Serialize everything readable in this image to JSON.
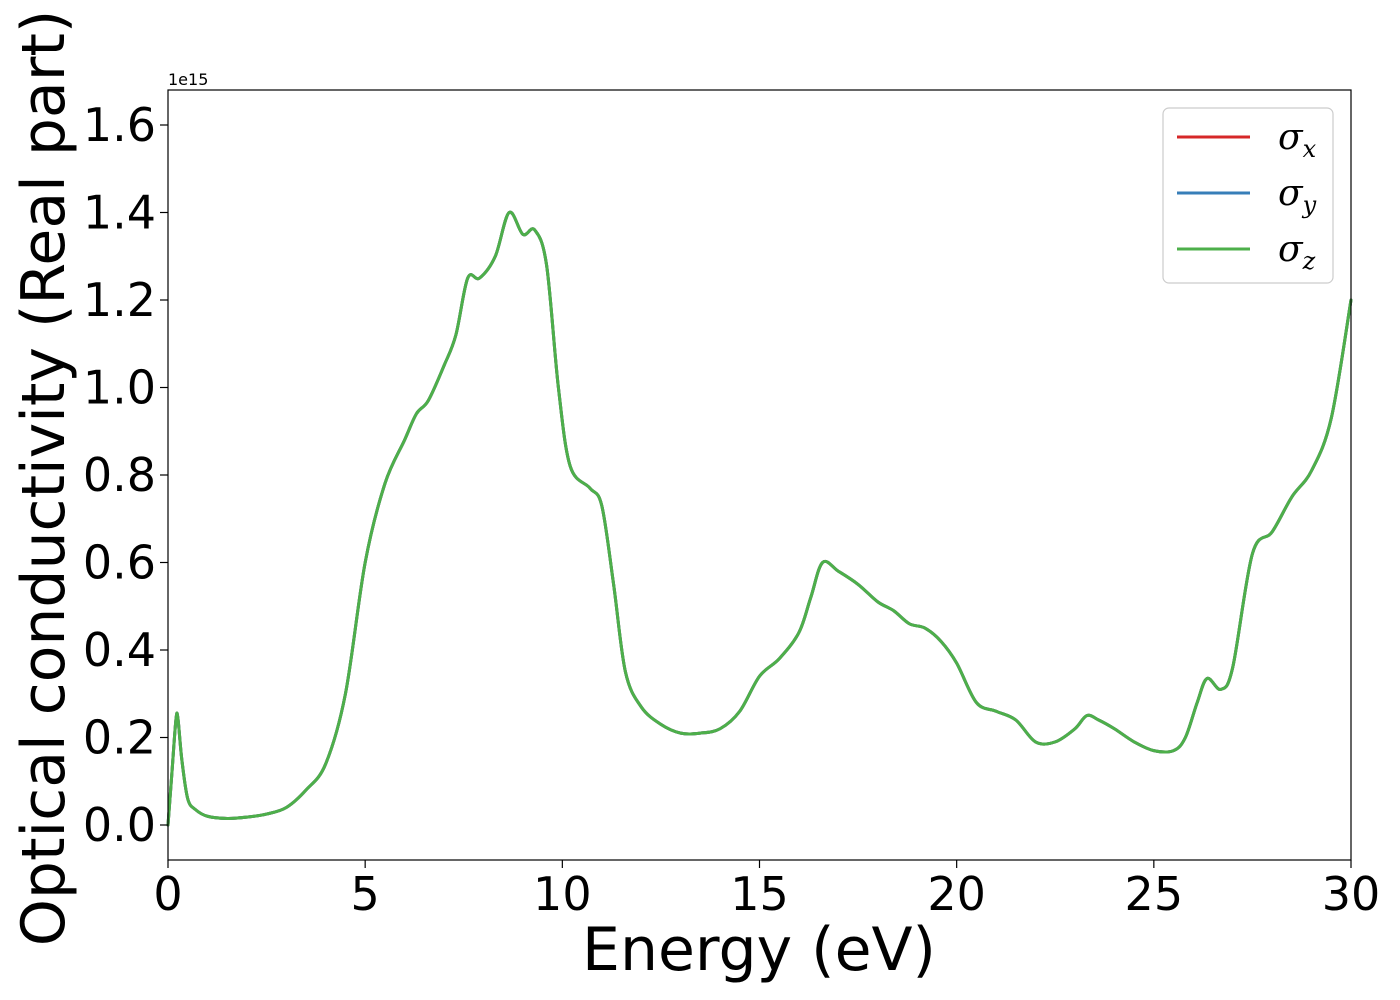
{
  "chart_data": {
    "type": "line",
    "xlabel": "Energy (eV)",
    "ylabel": "Optical conductivity (Real part)",
    "y_offset_label": "1e15",
    "y_scale_factor": 1000000000000000.0,
    "xlim": [
      0,
      30
    ],
    "ylim": [
      -0.08,
      1.68
    ],
    "x_ticks": [
      0,
      5,
      10,
      15,
      20,
      25,
      30
    ],
    "y_ticks": [
      0.0,
      0.2,
      0.4,
      0.6,
      0.8,
      1.0,
      1.2,
      1.4,
      1.6
    ],
    "x_tick_labels": [
      "0",
      "5",
      "10",
      "15",
      "20",
      "25",
      "30"
    ],
    "y_tick_labels": [
      "0.0",
      "0.2",
      "0.4",
      "0.6",
      "0.8",
      "1.0",
      "1.2",
      "1.4",
      "1.6"
    ],
    "grid": false,
    "legend_position": "top-right",
    "series": [
      {
        "name": "σx",
        "symbol": "σ",
        "subscript": "x",
        "color": "#d62728",
        "x": [
          0,
          0.1,
          0.2,
          0.25,
          0.35,
          0.5,
          0.7,
          1.0,
          1.5,
          2.0,
          2.5,
          3.0,
          3.5,
          4.0,
          4.5,
          5.0,
          5.5,
          6.0,
          6.3,
          6.6,
          7.0,
          7.3,
          7.6,
          7.9,
          8.3,
          8.65,
          9.0,
          9.3,
          9.6,
          9.9,
          10.2,
          10.7,
          11.0,
          11.3,
          11.6,
          12.0,
          12.5,
          13.0,
          13.5,
          14.0,
          14.5,
          15.0,
          15.5,
          16.0,
          16.3,
          16.6,
          17.0,
          17.5,
          18.0,
          18.4,
          18.8,
          19.2,
          19.6,
          20.0,
          20.5,
          21.0,
          21.5,
          22.0,
          22.5,
          23.0,
          23.3,
          23.6,
          24.0,
          24.5,
          25.0,
          25.5,
          25.8,
          26.1,
          26.35,
          26.7,
          27.0,
          27.5,
          28.0,
          28.5,
          29.0,
          29.5,
          30.0
        ],
        "y": [
          0.0,
          0.12,
          0.24,
          0.245,
          0.15,
          0.06,
          0.035,
          0.02,
          0.015,
          0.018,
          0.025,
          0.04,
          0.08,
          0.14,
          0.3,
          0.6,
          0.78,
          0.88,
          0.94,
          0.97,
          1.05,
          1.12,
          1.25,
          1.25,
          1.3,
          1.4,
          1.35,
          1.36,
          1.28,
          1.0,
          0.82,
          0.77,
          0.73,
          0.55,
          0.35,
          0.27,
          0.23,
          0.21,
          0.21,
          0.22,
          0.26,
          0.34,
          0.38,
          0.44,
          0.52,
          0.6,
          0.58,
          0.55,
          0.51,
          0.49,
          0.46,
          0.45,
          0.42,
          0.37,
          0.28,
          0.26,
          0.24,
          0.19,
          0.19,
          0.22,
          0.25,
          0.24,
          0.22,
          0.19,
          0.17,
          0.17,
          0.2,
          0.28,
          0.335,
          0.31,
          0.36,
          0.62,
          0.67,
          0.75,
          0.81,
          0.93,
          1.2
        ]
      },
      {
        "name": "σy",
        "symbol": "σ",
        "subscript": "y",
        "color": "#377eb8",
        "x": [
          0,
          0.1,
          0.2,
          0.25,
          0.35,
          0.5,
          0.7,
          1.0,
          1.5,
          2.0,
          2.5,
          3.0,
          3.5,
          4.0,
          4.5,
          5.0,
          5.5,
          6.0,
          6.3,
          6.6,
          7.0,
          7.3,
          7.6,
          7.9,
          8.3,
          8.65,
          9.0,
          9.3,
          9.6,
          9.9,
          10.2,
          10.7,
          11.0,
          11.3,
          11.6,
          12.0,
          12.5,
          13.0,
          13.5,
          14.0,
          14.5,
          15.0,
          15.5,
          16.0,
          16.3,
          16.6,
          17.0,
          17.5,
          18.0,
          18.4,
          18.8,
          19.2,
          19.6,
          20.0,
          20.5,
          21.0,
          21.5,
          22.0,
          22.5,
          23.0,
          23.3,
          23.6,
          24.0,
          24.5,
          25.0,
          25.5,
          25.8,
          26.1,
          26.35,
          26.7,
          27.0,
          27.5,
          28.0,
          28.5,
          29.0,
          29.5,
          30.0
        ],
        "y": [
          0.0,
          0.12,
          0.24,
          0.245,
          0.15,
          0.06,
          0.035,
          0.02,
          0.015,
          0.018,
          0.025,
          0.04,
          0.08,
          0.14,
          0.3,
          0.6,
          0.78,
          0.88,
          0.94,
          0.97,
          1.05,
          1.12,
          1.25,
          1.25,
          1.3,
          1.4,
          1.35,
          1.36,
          1.28,
          1.0,
          0.82,
          0.77,
          0.73,
          0.55,
          0.35,
          0.27,
          0.23,
          0.21,
          0.21,
          0.22,
          0.26,
          0.34,
          0.38,
          0.44,
          0.52,
          0.6,
          0.58,
          0.55,
          0.51,
          0.49,
          0.46,
          0.45,
          0.42,
          0.37,
          0.28,
          0.26,
          0.24,
          0.19,
          0.19,
          0.22,
          0.25,
          0.24,
          0.22,
          0.19,
          0.17,
          0.17,
          0.2,
          0.28,
          0.335,
          0.31,
          0.36,
          0.62,
          0.67,
          0.75,
          0.81,
          0.93,
          1.2
        ]
      },
      {
        "name": "σz",
        "symbol": "σ",
        "subscript": "z",
        "color": "#4daf4a",
        "x": [
          0,
          0.1,
          0.2,
          0.25,
          0.35,
          0.5,
          0.7,
          1.0,
          1.5,
          2.0,
          2.5,
          3.0,
          3.5,
          4.0,
          4.5,
          5.0,
          5.5,
          6.0,
          6.3,
          6.6,
          7.0,
          7.3,
          7.6,
          7.9,
          8.3,
          8.65,
          9.0,
          9.3,
          9.6,
          9.9,
          10.2,
          10.7,
          11.0,
          11.3,
          11.6,
          12.0,
          12.5,
          13.0,
          13.5,
          14.0,
          14.5,
          15.0,
          15.5,
          16.0,
          16.3,
          16.6,
          17.0,
          17.5,
          18.0,
          18.4,
          18.8,
          19.2,
          19.6,
          20.0,
          20.5,
          21.0,
          21.5,
          22.0,
          22.5,
          23.0,
          23.3,
          23.6,
          24.0,
          24.5,
          25.0,
          25.5,
          25.8,
          26.1,
          26.35,
          26.7,
          27.0,
          27.5,
          28.0,
          28.5,
          29.0,
          29.5,
          30.0
        ],
        "y": [
          0.0,
          0.12,
          0.24,
          0.245,
          0.15,
          0.06,
          0.035,
          0.02,
          0.015,
          0.018,
          0.025,
          0.04,
          0.08,
          0.14,
          0.3,
          0.6,
          0.78,
          0.88,
          0.94,
          0.97,
          1.05,
          1.12,
          1.25,
          1.25,
          1.3,
          1.4,
          1.35,
          1.36,
          1.28,
          1.0,
          0.82,
          0.77,
          0.73,
          0.55,
          0.35,
          0.27,
          0.23,
          0.21,
          0.21,
          0.22,
          0.26,
          0.34,
          0.38,
          0.44,
          0.52,
          0.6,
          0.58,
          0.55,
          0.51,
          0.49,
          0.46,
          0.45,
          0.42,
          0.37,
          0.28,
          0.26,
          0.24,
          0.19,
          0.19,
          0.22,
          0.25,
          0.24,
          0.22,
          0.19,
          0.17,
          0.17,
          0.2,
          0.28,
          0.335,
          0.31,
          0.36,
          0.62,
          0.67,
          0.75,
          0.81,
          0.93,
          1.2
        ]
      }
    ]
  }
}
